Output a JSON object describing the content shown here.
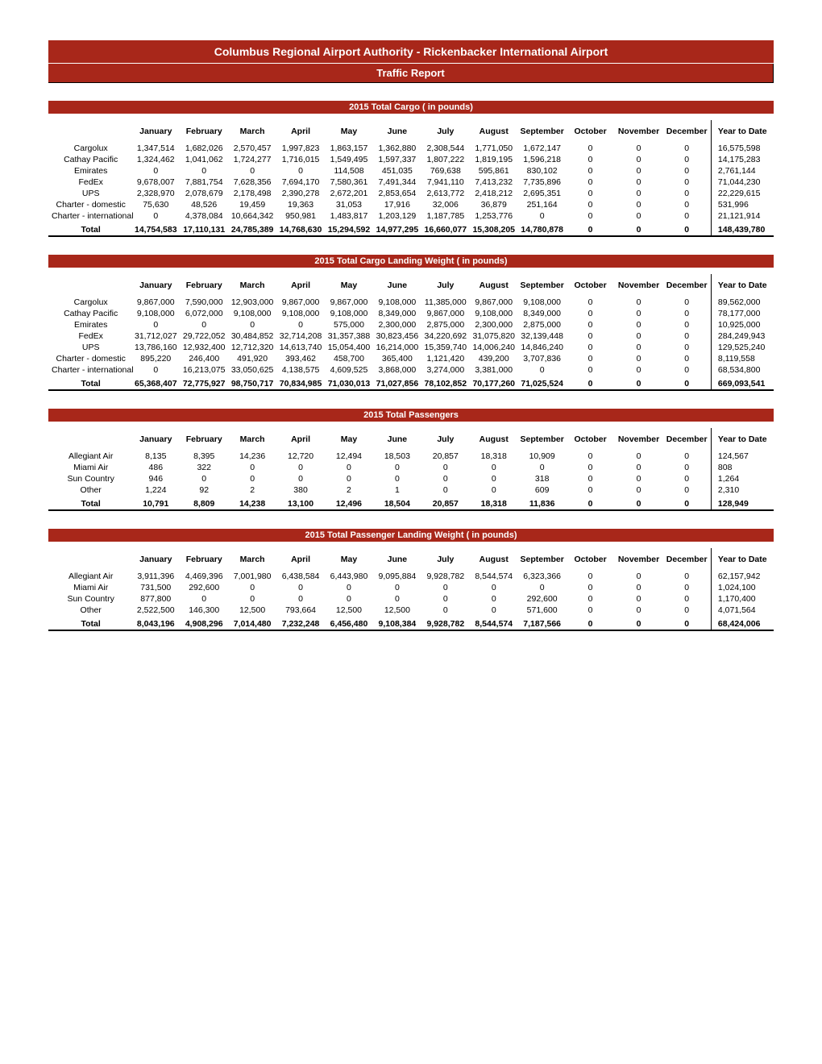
{
  "header": {
    "title": "Columbus Regional Airport Authority - Rickenbacker International Airport",
    "subtitle": "Traffic Report"
  },
  "months": [
    "January",
    "February",
    "March",
    "April",
    "May",
    "June",
    "July",
    "August",
    "September",
    "October",
    "November",
    "December"
  ],
  "ytd_label": "Year to Date",
  "sections": [
    {
      "title": "2015 Total Cargo ( in pounds)",
      "rows": [
        {
          "label": "Cargolux",
          "values": [
            "1,347,514",
            "1,682,026",
            "2,570,457",
            "1,997,823",
            "1,863,157",
            "1,362,880",
            "2,308,544",
            "1,771,050",
            "1,672,147",
            "0",
            "0",
            "0"
          ],
          "ytd": "16,575,598"
        },
        {
          "label": "Cathay Pacific",
          "values": [
            "1,324,462",
            "1,041,062",
            "1,724,277",
            "1,716,015",
            "1,549,495",
            "1,597,337",
            "1,807,222",
            "1,819,195",
            "1,596,218",
            "0",
            "0",
            "0"
          ],
          "ytd": "14,175,283"
        },
        {
          "label": "Emirates",
          "values": [
            "0",
            "0",
            "0",
            "0",
            "114,508",
            "451,035",
            "769,638",
            "595,861",
            "830,102",
            "0",
            "0",
            "0"
          ],
          "ytd": "2,761,144"
        },
        {
          "label": "FedEx",
          "values": [
            "9,678,007",
            "7,881,754",
            "7,628,356",
            "7,694,170",
            "7,580,361",
            "7,491,344",
            "7,941,110",
            "7,413,232",
            "7,735,896",
            "0",
            "0",
            "0"
          ],
          "ytd": "71,044,230"
        },
        {
          "label": "UPS",
          "values": [
            "2,328,970",
            "2,078,679",
            "2,178,498",
            "2,390,278",
            "2,672,201",
            "2,853,654",
            "2,613,772",
            "2,418,212",
            "2,695,351",
            "0",
            "0",
            "0"
          ],
          "ytd": "22,229,615"
        },
        {
          "label": "Charter - domestic",
          "values": [
            "75,630",
            "48,526",
            "19,459",
            "19,363",
            "31,053",
            "17,916",
            "32,006",
            "36,879",
            "251,164",
            "0",
            "0",
            "0"
          ],
          "ytd": "531,996"
        },
        {
          "label": "Charter - international",
          "values": [
            "0",
            "4,378,084",
            "10,664,342",
            "950,981",
            "1,483,817",
            "1,203,129",
            "1,187,785",
            "1,253,776",
            "0",
            "0",
            "0",
            "0"
          ],
          "ytd": "21,121,914"
        }
      ],
      "total": {
        "label": "Total",
        "values": [
          "14,754,583",
          "17,110,131",
          "24,785,389",
          "14,768,630",
          "15,294,592",
          "14,977,295",
          "16,660,077",
          "15,308,205",
          "14,780,878",
          "0",
          "0",
          "0"
        ],
        "ytd": "148,439,780"
      }
    },
    {
      "title": "2015 Total Cargo Landing Weight ( in pounds)",
      "rows": [
        {
          "label": "Cargolux",
          "values": [
            "9,867,000",
            "7,590,000",
            "12,903,000",
            "9,867,000",
            "9,867,000",
            "9,108,000",
            "11,385,000",
            "9,867,000",
            "9,108,000",
            "0",
            "0",
            "0"
          ],
          "ytd": "89,562,000"
        },
        {
          "label": "Cathay Pacific",
          "values": [
            "9,108,000",
            "6,072,000",
            "9,108,000",
            "9,108,000",
            "9,108,000",
            "8,349,000",
            "9,867,000",
            "9,108,000",
            "8,349,000",
            "0",
            "0",
            "0"
          ],
          "ytd": "78,177,000"
        },
        {
          "label": "Emirates",
          "values": [
            "0",
            "0",
            "0",
            "0",
            "575,000",
            "2,300,000",
            "2,875,000",
            "2,300,000",
            "2,875,000",
            "0",
            "0",
            "0"
          ],
          "ytd": "10,925,000"
        },
        {
          "label": "FedEx",
          "values": [
            "31,712,027",
            "29,722,052",
            "30,484,852",
            "32,714,208",
            "31,357,388",
            "30,823,456",
            "34,220,692",
            "31,075,820",
            "32,139,448",
            "0",
            "0",
            "0"
          ],
          "ytd": "284,249,943"
        },
        {
          "label": "UPS",
          "values": [
            "13,786,160",
            "12,932,400",
            "12,712,320",
            "14,613,740",
            "15,054,400",
            "16,214,000",
            "15,359,740",
            "14,006,240",
            "14,846,240",
            "0",
            "0",
            "0"
          ],
          "ytd": "129,525,240"
        },
        {
          "label": "Charter - domestic",
          "values": [
            "895,220",
            "246,400",
            "491,920",
            "393,462",
            "458,700",
            "365,400",
            "1,121,420",
            "439,200",
            "3,707,836",
            "0",
            "0",
            "0"
          ],
          "ytd": "8,119,558"
        },
        {
          "label": "Charter - international",
          "values": [
            "0",
            "16,213,075",
            "33,050,625",
            "4,138,575",
            "4,609,525",
            "3,868,000",
            "3,274,000",
            "3,381,000",
            "0",
            "0",
            "0",
            "0"
          ],
          "ytd": "68,534,800"
        }
      ],
      "total": {
        "label": "Total",
        "values": [
          "65,368,407",
          "72,775,927",
          "98,750,717",
          "70,834,985",
          "71,030,013",
          "71,027,856",
          "78,102,852",
          "70,177,260",
          "71,025,524",
          "0",
          "0",
          "0"
        ],
        "ytd": "669,093,541"
      }
    },
    {
      "title": "2015 Total Passengers",
      "rows": [
        {
          "label": "Allegiant Air",
          "values": [
            "8,135",
            "8,395",
            "14,236",
            "12,720",
            "12,494",
            "18,503",
            "20,857",
            "18,318",
            "10,909",
            "0",
            "0",
            "0"
          ],
          "ytd": "124,567"
        },
        {
          "label": "Miami Air",
          "values": [
            "486",
            "322",
            "0",
            "0",
            "0",
            "0",
            "0",
            "0",
            "0",
            "0",
            "0",
            "0"
          ],
          "ytd": "808"
        },
        {
          "label": "Sun Country",
          "values": [
            "946",
            "0",
            "0",
            "0",
            "0",
            "0",
            "0",
            "0",
            "318",
            "0",
            "0",
            "0"
          ],
          "ytd": "1,264"
        },
        {
          "label": "Other",
          "values": [
            "1,224",
            "92",
            "2",
            "380",
            "2",
            "1",
            "0",
            "0",
            "609",
            "0",
            "0",
            "0"
          ],
          "ytd": "2,310"
        }
      ],
      "total": {
        "label": "Total",
        "values": [
          "10,791",
          "8,809",
          "14,238",
          "13,100",
          "12,496",
          "18,504",
          "20,857",
          "18,318",
          "11,836",
          "0",
          "0",
          "0"
        ],
        "ytd": "128,949"
      }
    },
    {
      "title": "2015 Total Passenger Landing Weight ( in pounds)",
      "rows": [
        {
          "label": "Allegiant Air",
          "values": [
            "3,911,396",
            "4,469,396",
            "7,001,980",
            "6,438,584",
            "6,443,980",
            "9,095,884",
            "9,928,782",
            "8,544,574",
            "6,323,366",
            "0",
            "0",
            "0"
          ],
          "ytd": "62,157,942"
        },
        {
          "label": "Miami Air",
          "values": [
            "731,500",
            "292,600",
            "0",
            "0",
            "0",
            "0",
            "0",
            "0",
            "0",
            "0",
            "0",
            "0"
          ],
          "ytd": "1,024,100"
        },
        {
          "label": "Sun Country",
          "values": [
            "877,800",
            "0",
            "0",
            "0",
            "0",
            "0",
            "0",
            "0",
            "292,600",
            "0",
            "0",
            "0"
          ],
          "ytd": "1,170,400"
        },
        {
          "label": "Other",
          "values": [
            "2,522,500",
            "146,300",
            "12,500",
            "793,664",
            "12,500",
            "12,500",
            "0",
            "0",
            "571,600",
            "0",
            "0",
            "0"
          ],
          "ytd": "4,071,564"
        }
      ],
      "total": {
        "label": "Total",
        "values": [
          "8,043,196",
          "4,908,296",
          "7,014,480",
          "7,232,248",
          "6,456,480",
          "9,108,384",
          "9,928,782",
          "8,544,574",
          "7,187,566",
          "0",
          "0",
          "0"
        ],
        "ytd": "68,424,006"
      }
    }
  ]
}
